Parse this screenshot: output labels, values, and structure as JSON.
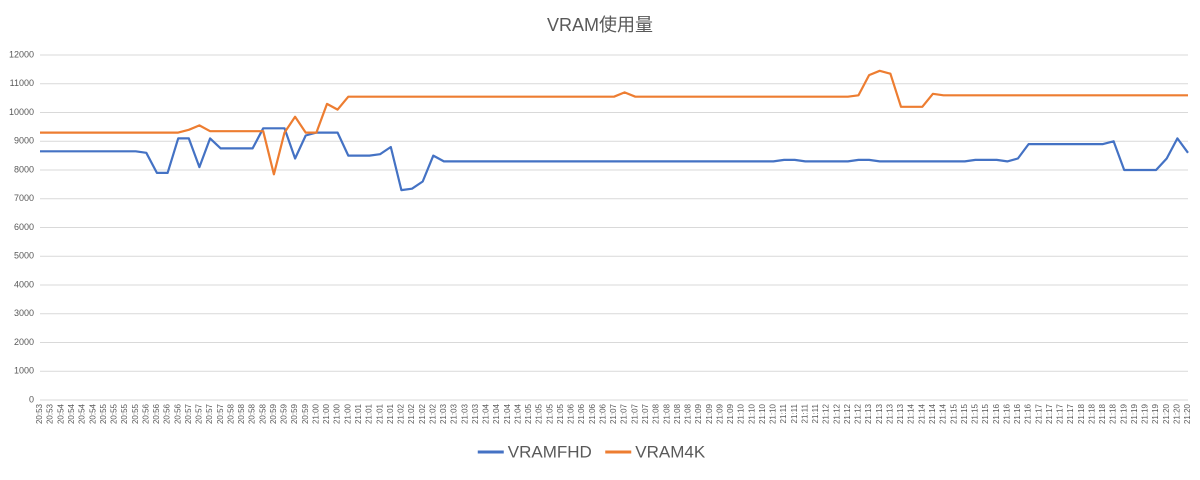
{
  "chart_data": {
    "type": "line",
    "title": "VRAM使用量",
    "categories": [
      "20:53",
      "20:53",
      "20:54",
      "20:54",
      "20:54",
      "20:54",
      "20:55",
      "20:55",
      "20:55",
      "20:55",
      "20:56",
      "20:56",
      "20:56",
      "20:56",
      "20:57",
      "20:57",
      "20:57",
      "20:57",
      "20:58",
      "20:58",
      "20:58",
      "20:58",
      "20:59",
      "20:59",
      "20:59",
      "20:59",
      "21:00",
      "21:00",
      "21:00",
      "21:00",
      "21:01",
      "21:01",
      "21:01",
      "21:01",
      "21:02",
      "21:02",
      "21:02",
      "21:02",
      "21:03",
      "21:03",
      "21:03",
      "21:03",
      "21:04",
      "21:04",
      "21:04",
      "21:04",
      "21:05",
      "21:05",
      "21:05",
      "21:05",
      "21:06",
      "21:06",
      "21:06",
      "21:06",
      "21:07",
      "21:07",
      "21:07",
      "21:07",
      "21:08",
      "21:08",
      "21:08",
      "21:08",
      "21:09",
      "21:09",
      "21:09",
      "21:09",
      "21:10",
      "21:10",
      "21:10",
      "21:10",
      "21:11",
      "21:11",
      "21:11",
      "21:11",
      "21:12",
      "21:12",
      "21:12",
      "21:12",
      "21:13",
      "21:13",
      "21:13",
      "21:13",
      "21:14",
      "21:14",
      "21:14",
      "21:14",
      "21:15",
      "21:15",
      "21:15",
      "21:15",
      "21:16",
      "21:16",
      "21:16",
      "21:16",
      "21:17",
      "21:17",
      "21:17",
      "21:17",
      "21:18",
      "21:18",
      "21:18",
      "21:18",
      "21:19",
      "21:19",
      "21:19",
      "21:19",
      "21:20",
      "21:20",
      "21:20"
    ],
    "series": [
      {
        "name": "VRAMFHD",
        "color": "#4472c4",
        "values": [
          8650,
          8650,
          8650,
          8650,
          8650,
          8650,
          8650,
          8650,
          8650,
          8650,
          8600,
          7900,
          7900,
          9100,
          9100,
          8100,
          9100,
          8750,
          8750,
          8750,
          8750,
          9450,
          9450,
          9450,
          8400,
          9200,
          9300,
          9300,
          9300,
          8500,
          8500,
          8500,
          8550,
          8800,
          7300,
          7350,
          7600,
          8500,
          8300,
          8300,
          8300,
          8300,
          8300,
          8300,
          8300,
          8300,
          8300,
          8300,
          8300,
          8300,
          8300,
          8300,
          8300,
          8300,
          8300,
          8300,
          8300,
          8300,
          8300,
          8300,
          8300,
          8300,
          8300,
          8300,
          8300,
          8300,
          8300,
          8300,
          8300,
          8300,
          8350,
          8350,
          8300,
          8300,
          8300,
          8300,
          8300,
          8350,
          8350,
          8300,
          8300,
          8300,
          8300,
          8300,
          8300,
          8300,
          8300,
          8300,
          8350,
          8350,
          8350,
          8300,
          8400,
          8900,
          8900,
          8900,
          8900,
          8900,
          8900,
          8900,
          8900,
          9000,
          8000,
          8000,
          8000,
          8000,
          8400,
          9100,
          8600
        ]
      },
      {
        "name": "VRAM4K",
        "color": "#ed7d31",
        "values": [
          9300,
          9300,
          9300,
          9300,
          9300,
          9300,
          9300,
          9300,
          9300,
          9300,
          9300,
          9300,
          9300,
          9300,
          9400,
          9550,
          9350,
          9350,
          9350,
          9350,
          9350,
          9350,
          7850,
          9300,
          9850,
          9300,
          9300,
          10300,
          10100,
          10550,
          10550,
          10550,
          10550,
          10550,
          10550,
          10550,
          10550,
          10550,
          10550,
          10550,
          10550,
          10550,
          10550,
          10550,
          10550,
          10550,
          10550,
          10550,
          10550,
          10550,
          10550,
          10550,
          10550,
          10550,
          10550,
          10700,
          10550,
          10550,
          10550,
          10550,
          10550,
          10550,
          10550,
          10550,
          10550,
          10550,
          10550,
          10550,
          10550,
          10550,
          10550,
          10550,
          10550,
          10550,
          10550,
          10550,
          10550,
          10600,
          11300,
          11450,
          11350,
          10200,
          10200,
          10200,
          10650,
          10600,
          10600,
          10600,
          10600,
          10600,
          10600,
          10600,
          10600,
          10600,
          10600,
          10600,
          10600,
          10600,
          10600,
          10600,
          10600,
          10600,
          10600,
          10600,
          10600,
          10600,
          10600,
          10600,
          10600
        ]
      }
    ],
    "ylim": [
      0,
      12000
    ],
    "yticks": [
      0,
      1000,
      2000,
      3000,
      4000,
      5000,
      6000,
      7000,
      8000,
      9000,
      10000,
      11000,
      12000
    ],
    "grid": true,
    "legend": "bottom"
  }
}
